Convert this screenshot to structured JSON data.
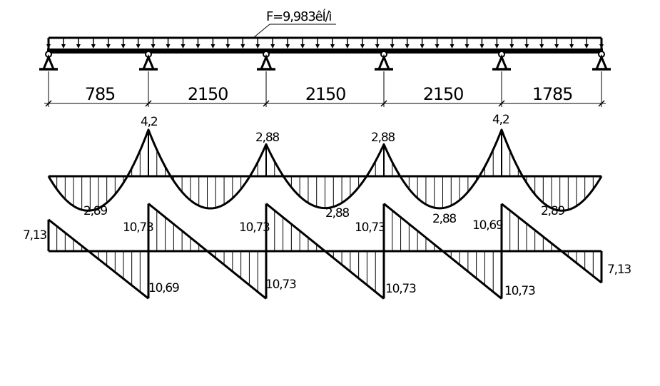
{
  "load": {
    "label": "F=9,983êÍ/ì"
  },
  "spans": [
    {
      "length": "785",
      "length_value": 785
    },
    {
      "length": "2150",
      "length_value": 2150
    },
    {
      "length": "2150",
      "length_value": 2150
    },
    {
      "length": "2150",
      "length_value": 2150
    },
    {
      "length": "1785",
      "length_value": 1785
    }
  ],
  "moment": {
    "supports": [
      {
        "label": "",
        "value": 0
      },
      {
        "label": "4,2",
        "value": 4.2
      },
      {
        "label": "2,88",
        "value": 2.88
      },
      {
        "label": "2,88",
        "value": 2.88
      },
      {
        "label": "4,2",
        "value": 4.2
      },
      {
        "label": "",
        "value": 0
      }
    ],
    "spans": [
      {
        "label": "2,89",
        "value": 2.89
      },
      {
        "label": "",
        "value": 2.89
      },
      {
        "label": "2,88",
        "value": 2.88
      },
      {
        "label": "2,88",
        "value": 2.88
      },
      {
        "label": "2,89",
        "value": 2.89
      }
    ]
  },
  "shear": {
    "spans": [
      {
        "left_label": "7,13",
        "left_value": 7.13,
        "right_label": "10,69",
        "right_value": -10.69
      },
      {
        "left_label": "10,73",
        "left_value": 10.73,
        "right_label": "10,73",
        "right_value": -10.73
      },
      {
        "left_label": "10,73",
        "left_value": 10.73,
        "right_label": "10,73",
        "right_value": -10.73
      },
      {
        "left_label": "10,73",
        "left_value": 10.73,
        "right_label": "10,73",
        "right_value": -10.73
      },
      {
        "left_label": "10,69",
        "left_value": 10.69,
        "right_label": "7,13",
        "right_value": -7.13
      }
    ]
  }
}
